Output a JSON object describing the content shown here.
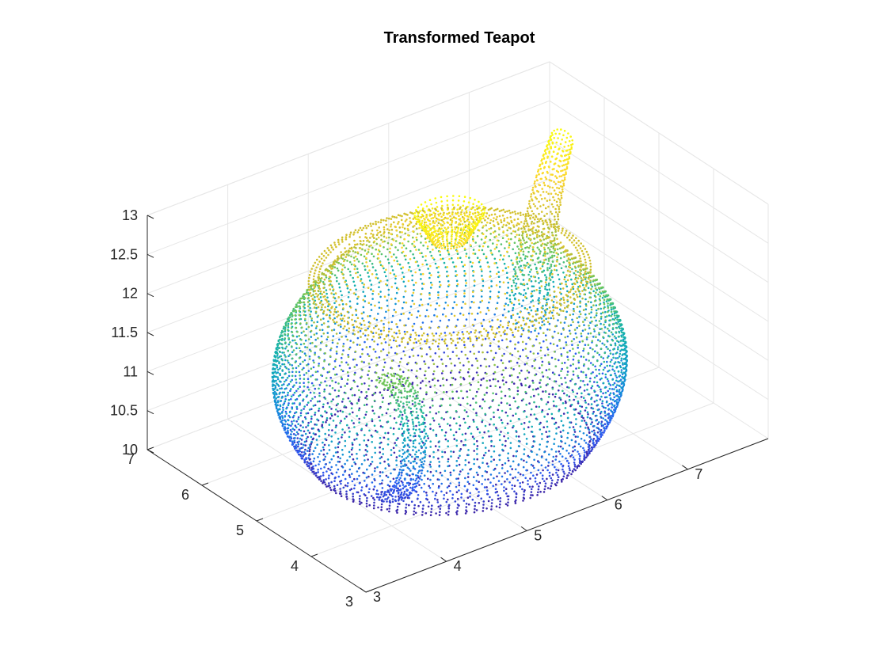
{
  "chart_data": {
    "type": "scatter3d",
    "title": "Transformed Teapot",
    "xlabel": "",
    "ylabel": "",
    "zlabel": "",
    "xlim": [
      3,
      8
    ],
    "ylim": [
      3,
      7
    ],
    "zlim": [
      10,
      13
    ],
    "x_ticks": [
      3,
      4,
      5,
      6,
      7
    ],
    "y_ticks": [
      3,
      4,
      5,
      6,
      7
    ],
    "z_ticks": [
      10,
      10.5,
      11,
      11.5,
      12,
      12.5,
      13
    ],
    "x_tick_labels": [
      "3",
      "4",
      "5",
      "6",
      "7"
    ],
    "y_tick_labels": [
      "3",
      "4",
      "5",
      "6",
      "7"
    ],
    "z_tick_labels": [
      "10",
      "10.5",
      "11",
      "11.5",
      "12",
      "12.5",
      "13"
    ],
    "grid": true,
    "colormap": "parula",
    "colors": {
      "axis": "#262626",
      "grid": "#e6e6e6",
      "parula": [
        "#3e26a8",
        "#2d5cf5",
        "#1296d4",
        "#14b3aa",
        "#6bc75c",
        "#c9bc2e",
        "#fbd52f",
        "#f9fb0e"
      ]
    },
    "teapot": {
      "center": [
        5.4,
        5.0
      ],
      "body_radius": 1.6,
      "z_bottom": 10.0,
      "z_body_top": 12.2,
      "lid_rim_radius": 1.45,
      "knob_top_z": 13.0,
      "spout_tip": [
        7.2,
        5.6,
        12.95
      ],
      "handle_center": [
        4.1,
        4.2,
        11.0
      ]
    }
  }
}
